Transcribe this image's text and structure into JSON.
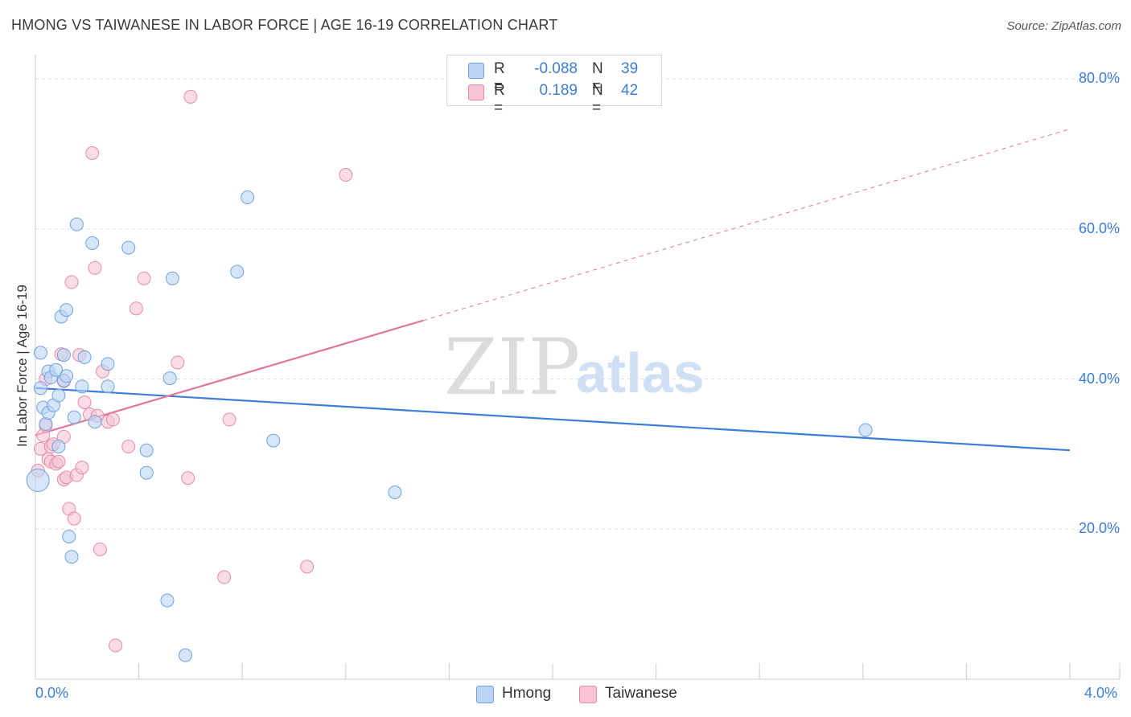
{
  "title": "HMONG VS TAIWANESE IN LABOR FORCE | AGE 16-19 CORRELATION CHART",
  "source": "Source: ZipAtlas.com",
  "watermark": {
    "zip": "ZIP",
    "atlas": "atlas"
  },
  "legend": {
    "r_label": "R =",
    "n_label": "N =",
    "rows": [
      {
        "name": "Hmong",
        "r": "-0.088",
        "n": "39",
        "color": "#6fa3e0",
        "fill": "#bcd4f5"
      },
      {
        "name": "Taiwanese",
        "r": "0.189",
        "n": "42",
        "color": "#e98aa6",
        "fill": "#f7c4d3"
      }
    ]
  },
  "chart_data": {
    "type": "scatter",
    "title": "HMONG VS TAIWANESE IN LABOR FORCE | AGE 16-19 CORRELATION CHART",
    "xlabel": "",
    "ylabel": "In Labor Force | Age 16-19",
    "xlim": [
      0.0,
      4.0
    ],
    "ylim": [
      0.0,
      80.0
    ],
    "x_tick_labels": [
      "0.0%",
      "4.0%"
    ],
    "y_ticks": [
      20,
      40,
      60,
      80
    ],
    "y_tick_labels": [
      "20.0%",
      "40.0%",
      "60.0%",
      "80.0%"
    ],
    "grid": true,
    "series": [
      {
        "name": "Hmong",
        "color": "#3b7dd8",
        "points": [
          [
            0.01,
            26.5
          ],
          [
            0.02,
            43.5
          ],
          [
            0.02,
            38.8
          ],
          [
            0.03,
            36.2
          ],
          [
            0.04,
            34.0
          ],
          [
            0.05,
            35.5
          ],
          [
            0.05,
            41.0
          ],
          [
            0.06,
            40.2
          ],
          [
            0.07,
            36.5
          ],
          [
            0.08,
            41.2
          ],
          [
            0.09,
            37.8
          ],
          [
            0.09,
            31.0
          ],
          [
            0.1,
            48.3
          ],
          [
            0.11,
            39.8
          ],
          [
            0.11,
            43.2
          ],
          [
            0.12,
            49.2
          ],
          [
            0.12,
            40.4
          ],
          [
            0.13,
            19.0
          ],
          [
            0.14,
            16.3
          ],
          [
            0.15,
            34.9
          ],
          [
            0.16,
            60.6
          ],
          [
            0.18,
            39.0
          ],
          [
            0.19,
            42.9
          ],
          [
            0.22,
            58.1
          ],
          [
            0.23,
            34.3
          ],
          [
            0.28,
            39.0
          ],
          [
            0.28,
            42.0
          ],
          [
            0.36,
            57.5
          ],
          [
            0.43,
            30.5
          ],
          [
            0.43,
            27.5
          ],
          [
            0.51,
            10.5
          ],
          [
            0.52,
            40.1
          ],
          [
            0.53,
            53.4
          ],
          [
            0.58,
            3.2
          ],
          [
            0.78,
            54.3
          ],
          [
            0.82,
            64.2
          ],
          [
            0.92,
            31.8
          ],
          [
            1.39,
            24.9
          ],
          [
            3.21,
            33.2
          ]
        ],
        "trend": {
          "x": [
            0.0,
            4.0
          ],
          "y": [
            38.8,
            30.5
          ]
        }
      },
      {
        "name": "Taiwanese",
        "color": "#e0779b",
        "points": [
          [
            0.01,
            27.8
          ],
          [
            0.02,
            30.7
          ],
          [
            0.03,
            32.5
          ],
          [
            0.04,
            33.8
          ],
          [
            0.05,
            29.3
          ],
          [
            0.06,
            29.0
          ],
          [
            0.06,
            31.0
          ],
          [
            0.07,
            31.3
          ],
          [
            0.08,
            28.7
          ],
          [
            0.09,
            29.0
          ],
          [
            0.1,
            43.3
          ],
          [
            0.11,
            26.6
          ],
          [
            0.11,
            39.7
          ],
          [
            0.11,
            32.3
          ],
          [
            0.12,
            26.9
          ],
          [
            0.13,
            22.7
          ],
          [
            0.14,
            52.9
          ],
          [
            0.15,
            21.4
          ],
          [
            0.16,
            27.2
          ],
          [
            0.17,
            43.2
          ],
          [
            0.18,
            28.2
          ],
          [
            0.19,
            36.9
          ],
          [
            0.21,
            35.3
          ],
          [
            0.22,
            70.1
          ],
          [
            0.23,
            54.8
          ],
          [
            0.24,
            35.1
          ],
          [
            0.25,
            17.3
          ],
          [
            0.26,
            41.0
          ],
          [
            0.28,
            34.3
          ],
          [
            0.3,
            34.6
          ],
          [
            0.31,
            4.5
          ],
          [
            0.36,
            31.0
          ],
          [
            0.39,
            49.4
          ],
          [
            0.42,
            53.4
          ],
          [
            0.55,
            42.2
          ],
          [
            0.59,
            26.8
          ],
          [
            0.6,
            77.6
          ],
          [
            0.73,
            13.6
          ],
          [
            0.75,
            34.6
          ],
          [
            1.05,
            15.0
          ],
          [
            1.2,
            67.2
          ],
          [
            0.04,
            40.0
          ]
        ],
        "trend": {
          "x": [
            0.0,
            4.0
          ],
          "y": [
            32.5,
            73.3
          ],
          "solid_until_x": 1.5
        }
      }
    ]
  }
}
